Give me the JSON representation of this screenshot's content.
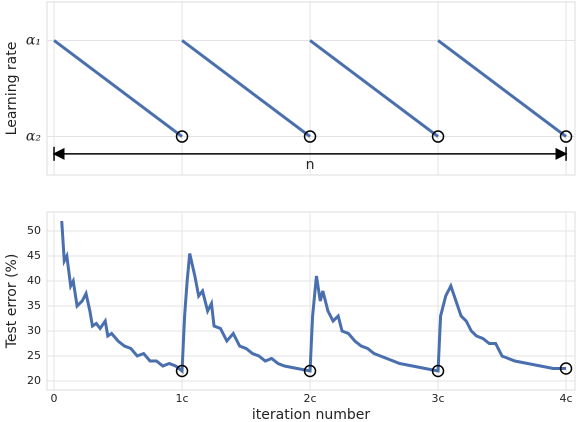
{
  "chart_data": [
    {
      "type": "line",
      "ylabel": "Learning rate",
      "color": "#4a6fae",
      "grid": true,
      "end_markers": true,
      "xlim": [
        -0.055,
        4.07
      ],
      "xticks": [
        0,
        1,
        2,
        3,
        4
      ],
      "ylim": [
        -0.4,
        1.4
      ],
      "yticks": [
        {
          "value": 1,
          "label": "α₁"
        },
        {
          "value": 0,
          "label": "α₂"
        }
      ],
      "x": [
        0,
        1,
        1,
        1,
        2,
        2,
        2,
        3,
        3,
        3,
        4
      ],
      "values": [
        1,
        0,
        null,
        1,
        0,
        null,
        1,
        0,
        null,
        1,
        0
      ],
      "annotation": {
        "text": "n",
        "x": [
          0,
          4
        ],
        "y": -0.18
      }
    },
    {
      "type": "line",
      "ylabel": "Test error (%)",
      "xlabel": "iteration number",
      "color": "#4a6fae",
      "grid": true,
      "xlim": [
        -0.055,
        4.07
      ],
      "xticks": [
        0,
        {
          "value": 1,
          "label": "1c"
        },
        {
          "value": 2,
          "label": "2c"
        },
        {
          "value": 3,
          "label": "3c"
        },
        {
          "value": 4,
          "label": "4c"
        }
      ],
      "ylim": [
        18.2,
        53.8
      ],
      "yticks": [
        20,
        25,
        30,
        35,
        40,
        45,
        50
      ],
      "circled_x": [
        1,
        2,
        3,
        4
      ],
      "x": [
        0.06,
        0.08,
        0.1,
        0.13,
        0.15,
        0.18,
        0.22,
        0.25,
        0.28,
        0.3,
        0.33,
        0.36,
        0.4,
        0.42,
        0.45,
        0.5,
        0.55,
        0.6,
        0.65,
        0.7,
        0.75,
        0.8,
        0.85,
        0.9,
        0.95,
        1,
        1.02,
        1.04,
        1.06,
        1.1,
        1.13,
        1.16,
        1.2,
        1.23,
        1.25,
        1.3,
        1.35,
        1.4,
        1.45,
        1.5,
        1.55,
        1.6,
        1.65,
        1.7,
        1.75,
        1.8,
        1.9,
        2,
        2.02,
        2.05,
        2.08,
        2.1,
        2.14,
        2.18,
        2.22,
        2.25,
        2.3,
        2.35,
        2.4,
        2.45,
        2.5,
        2.55,
        2.6,
        2.7,
        2.8,
        2.9,
        3,
        3.02,
        3.06,
        3.1,
        3.14,
        3.18,
        3.22,
        3.26,
        3.3,
        3.35,
        3.4,
        3.45,
        3.5,
        3.55,
        3.6,
        3.7,
        3.8,
        3.9,
        4
      ],
      "values": [
        52,
        44,
        45,
        39,
        40,
        35,
        36,
        37.5,
        34,
        31,
        31.5,
        30.5,
        32,
        29,
        29.5,
        28,
        27,
        26.5,
        25,
        25.5,
        24,
        24,
        23,
        23.5,
        23,
        22,
        33,
        40,
        45.5,
        41,
        37,
        38,
        34,
        35.5,
        31,
        30.5,
        28,
        29.5,
        27,
        26.5,
        25.5,
        25,
        24,
        24.5,
        23.5,
        23,
        22.5,
        22,
        33,
        41,
        36,
        38,
        34,
        32,
        33,
        30,
        29.5,
        28,
        27,
        26.5,
        25.5,
        25,
        24.5,
        23.5,
        23,
        22.5,
        22,
        33,
        37,
        39,
        36,
        33,
        32,
        30,
        29,
        28.5,
        27.5,
        27.5,
        25,
        24.5,
        24,
        23.5,
        23,
        22.5,
        22.5
      ]
    }
  ]
}
